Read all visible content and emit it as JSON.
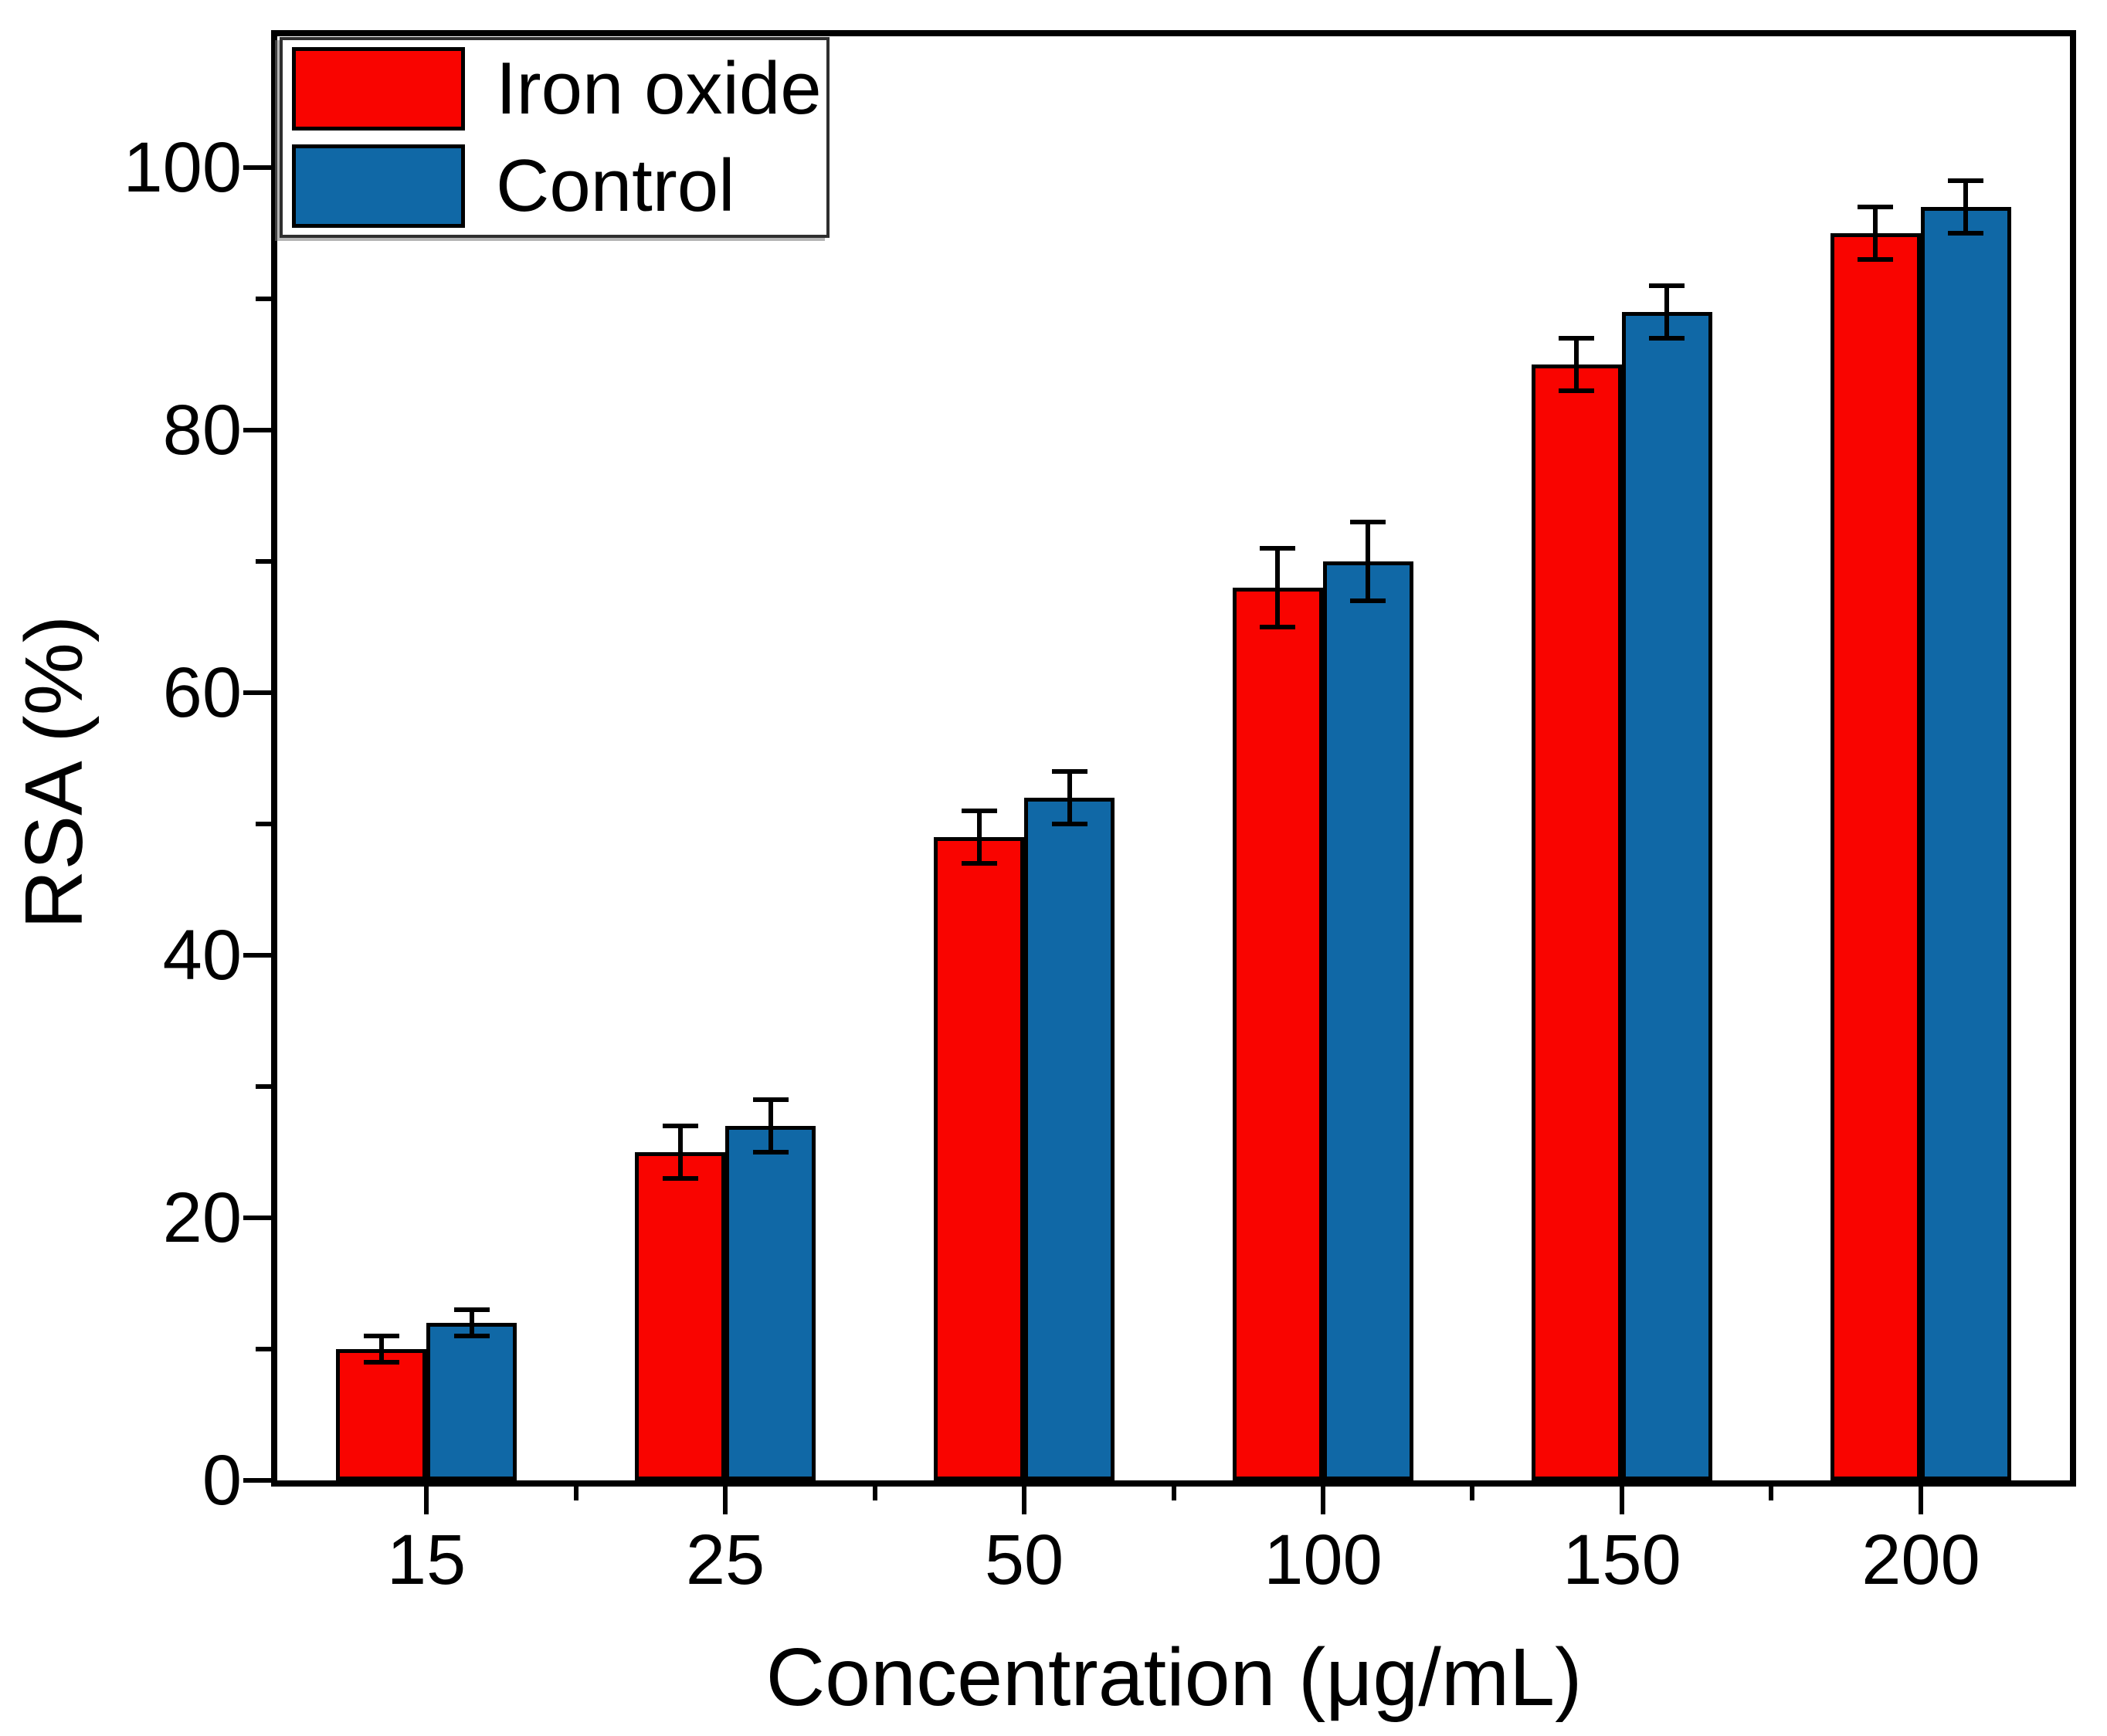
{
  "chart_data": {
    "type": "bar",
    "title": "",
    "xlabel": "Concentration (μg/mL)",
    "ylabel": "RSA (%)",
    "categories": [
      "15",
      "25",
      "50",
      "100",
      "150",
      "200"
    ],
    "series": [
      {
        "name": "Iron oxide",
        "color": "#f90400",
        "values": [
          10,
          25,
          49,
          68,
          85,
          95
        ],
        "errors": [
          1,
          2,
          2,
          3,
          2,
          2
        ]
      },
      {
        "name": "Control",
        "color": "#1068a6",
        "values": [
          12,
          27,
          52,
          70,
          89,
          97
        ],
        "errors": [
          1,
          2,
          2,
          3,
          2,
          2
        ]
      }
    ],
    "ylim": [
      0,
      110
    ],
    "yticks_major": [
      0,
      20,
      40,
      60,
      80,
      100
    ],
    "yticks_minor": [
      10,
      30,
      50,
      70,
      90
    ],
    "grid": false,
    "legend_position": "top-left",
    "bar_outline_color": "#000000",
    "error_bar_color": "#000000",
    "frame_color": "#000000",
    "background_color": "#ffffff"
  }
}
